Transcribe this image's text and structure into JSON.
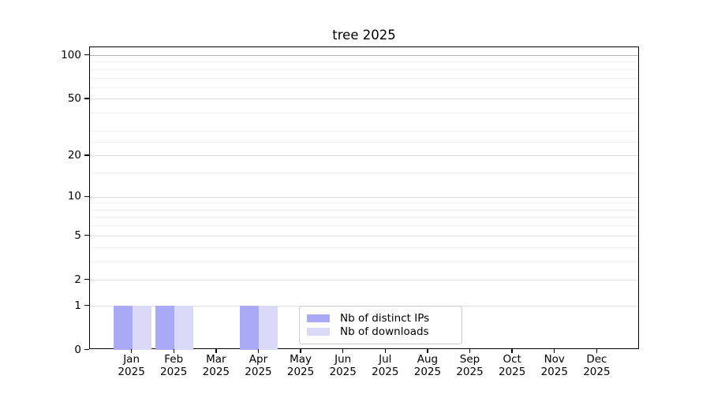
{
  "chart_data": {
    "type": "bar",
    "title": "tree 2025",
    "categories": [
      "Jan",
      "Feb",
      "Mar",
      "Apr",
      "May",
      "Jun",
      "Jul",
      "Aug",
      "Sep",
      "Oct",
      "Nov",
      "Dec"
    ],
    "x_sub_label": "2025",
    "series": [
      {
        "name": "Nb of distinct IPs",
        "color": "#a9a9f6",
        "values": [
          1,
          1,
          0,
          1,
          0,
          0,
          0,
          0,
          0,
          0,
          0,
          0
        ]
      },
      {
        "name": "Nb of downloads",
        "color": "#dadaf8",
        "values": [
          1,
          1,
          0,
          1,
          0,
          0,
          0,
          0,
          0,
          0,
          0,
          0
        ]
      }
    ],
    "xlabel": "",
    "ylabel": "",
    "y_scale": "log1p",
    "y_major_ticks": [
      0,
      1,
      2,
      5,
      10,
      20,
      50,
      100
    ],
    "y_minor_gridlines": [
      3,
      4,
      6,
      7,
      8,
      9,
      15,
      25,
      30,
      40,
      60,
      70,
      80,
      90
    ],
    "ylim": [
      0,
      113.3
    ],
    "grid": "on",
    "legend_position": "inside lower center"
  }
}
